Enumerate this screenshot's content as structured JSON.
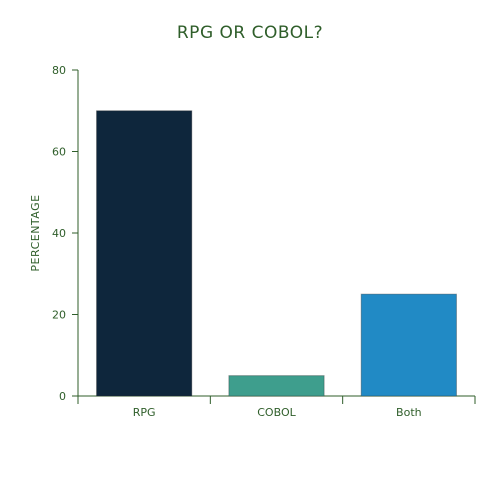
{
  "chart_data": {
    "type": "bar",
    "title": "RPG OR COBOL?",
    "xlabel": "",
    "ylabel": "PERCENTAGE",
    "categories": [
      "RPG",
      "COBOL",
      "Both"
    ],
    "values": [
      70,
      5,
      25
    ],
    "colors": [
      "#0e263c",
      "#3e9e8d",
      "#218ac5"
    ],
    "ylim": [
      0,
      80
    ],
    "yticks": [
      0,
      20,
      40,
      60,
      80
    ],
    "grid": false,
    "legend": "none",
    "axis_color": "#2f5e2a"
  }
}
